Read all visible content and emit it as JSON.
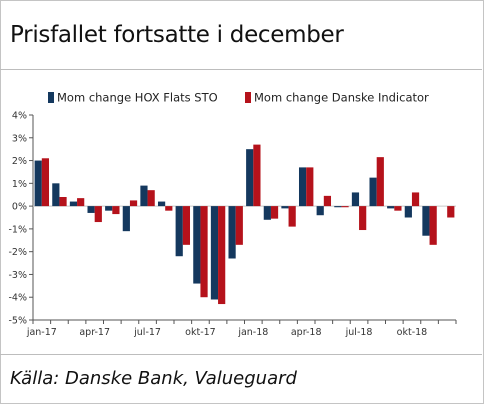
{
  "title": "Prisfallet fortsatte i december",
  "source": "Källa: Danske Bank, Valueguard",
  "colors": {
    "series1": "#14385e",
    "series2": "#b5121b",
    "axis": "#555555",
    "grid": "#c8c8c8"
  },
  "chart_data": {
    "type": "bar",
    "legend_position": "top",
    "grid": false,
    "ylim": [
      -5,
      4
    ],
    "yticks": [
      4,
      3,
      2,
      1,
      0,
      -1,
      -2,
      -3,
      -4,
      -5
    ],
    "ytick_labels": [
      "4%",
      "3%",
      "2%",
      "1%",
      "0%",
      "-1%",
      "-2%",
      "-3%",
      "-4%",
      "-5%"
    ],
    "categories": [
      "jan-17",
      "feb-17",
      "mar-17",
      "apr-17",
      "maj-17",
      "jun-17",
      "jul-17",
      "aug-17",
      "sep-17",
      "okt-17",
      "nov-17",
      "dec-17",
      "jan-18",
      "feb-18",
      "mar-18",
      "apr-18",
      "maj-18",
      "jun-18",
      "jul-18",
      "aug-18",
      "sep-18",
      "okt-18",
      "nov-18",
      "dec-18"
    ],
    "xtick_labels": [
      {
        "index": 0,
        "label": "jan-17"
      },
      {
        "index": 3,
        "label": "apr-17"
      },
      {
        "index": 6,
        "label": "jul-17"
      },
      {
        "index": 9,
        "label": "okt-17"
      },
      {
        "index": 12,
        "label": "jan-18"
      },
      {
        "index": 15,
        "label": "apr-18"
      },
      {
        "index": 18,
        "label": "jul-18"
      },
      {
        "index": 21,
        "label": "okt-18"
      }
    ],
    "series": [
      {
        "name": "Mom change HOX Flats STO",
        "values": [
          2.0,
          1.0,
          0.2,
          -0.3,
          -0.2,
          -1.1,
          0.9,
          0.2,
          -2.2,
          -3.4,
          -4.1,
          -2.3,
          2.5,
          -0.6,
          -0.1,
          1.7,
          -0.4,
          -0.05,
          0.6,
          1.25,
          -0.1,
          -0.5,
          -1.3,
          null
        ]
      },
      {
        "name": "Mom change Danske Indicator",
        "values": [
          2.1,
          0.4,
          0.35,
          -0.7,
          -0.35,
          0.25,
          0.7,
          -0.2,
          -1.7,
          -4.0,
          -4.3,
          -1.7,
          2.7,
          -0.55,
          -0.9,
          1.7,
          0.45,
          -0.05,
          -1.05,
          2.15,
          -0.2,
          0.6,
          -1.7,
          -0.5
        ]
      }
    ]
  }
}
